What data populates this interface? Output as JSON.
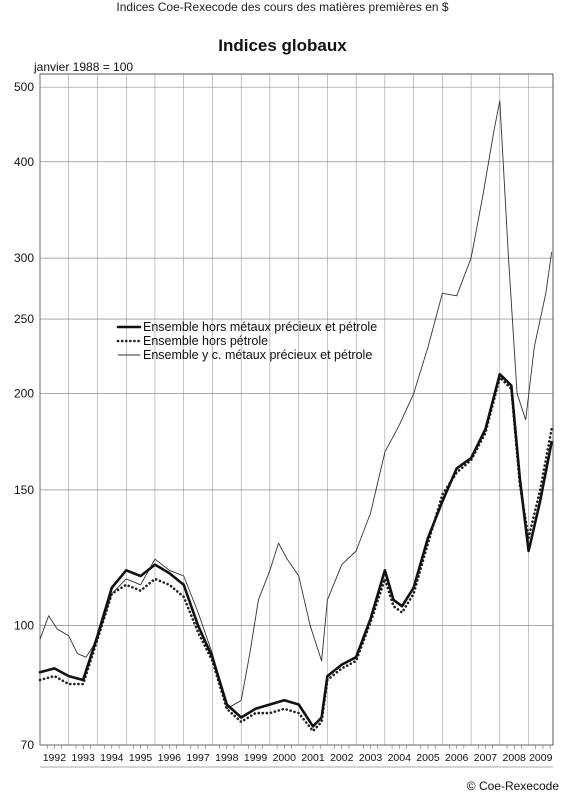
{
  "header": {
    "top_title": "Indices Coe-Rexecode des cours des matières premières en $",
    "chart_title": "Indices globaux",
    "base_note": "janvier 1988 = 100",
    "copyright": "© Coe-Rexecode"
  },
  "chart_data": {
    "type": "line",
    "title": "Indices globaux",
    "subtitle": "janvier 1988 = 100",
    "yscale": "log",
    "ylim": [
      70,
      520
    ],
    "yticks": [
      70,
      100,
      150,
      200,
      250,
      300,
      400,
      500
    ],
    "xlim": [
      1992.0,
      2009.85
    ],
    "xticks": [
      "1992",
      "1993",
      "1994",
      "1995",
      "1996",
      "1997",
      "1998",
      "1999",
      "2000",
      "2001",
      "2002",
      "2003",
      "2004",
      "2005",
      "2006",
      "2007",
      "2008",
      "2009"
    ],
    "grid": true,
    "legend_position": "center-left",
    "series": [
      {
        "name": "Ensemble hors métaux précieux et pétrole",
        "style": "thick",
        "color": "#111111",
        "x": [
          1992.0,
          1992.5,
          1993.0,
          1993.5,
          1994.0,
          1994.5,
          1995.0,
          1995.5,
          1996.0,
          1996.5,
          1997.0,
          1997.5,
          1998.0,
          1998.5,
          1999.0,
          1999.5,
          2000.0,
          2000.5,
          2001.0,
          2001.5,
          2001.8,
          2002.0,
          2002.5,
          2003.0,
          2003.5,
          2004.0,
          2004.3,
          2004.6,
          2005.0,
          2005.5,
          2006.0,
          2006.5,
          2007.0,
          2007.5,
          2008.0,
          2008.4,
          2008.7,
          2009.0,
          2009.4,
          2009.8
        ],
        "y": [
          87,
          88,
          86,
          85,
          97,
          112,
          118,
          116,
          120,
          117,
          113,
          100,
          91,
          79,
          76,
          78,
          79,
          80,
          79,
          74,
          76,
          86,
          89,
          91,
          102,
          118,
          108,
          106,
          112,
          130,
          145,
          160,
          165,
          180,
          212,
          205,
          155,
          125,
          145,
          173
        ]
      },
      {
        "name": "Ensemble hors pétrole",
        "style": "dotted",
        "color": "#222222",
        "x": [
          1992.0,
          1992.5,
          1993.0,
          1993.5,
          1994.0,
          1994.5,
          1995.0,
          1995.5,
          1996.0,
          1996.5,
          1997.0,
          1997.5,
          1998.0,
          1998.5,
          1999.0,
          1999.5,
          2000.0,
          2000.5,
          2001.0,
          2001.5,
          2001.8,
          2002.0,
          2002.5,
          2003.0,
          2003.5,
          2004.0,
          2004.3,
          2004.6,
          2005.0,
          2005.5,
          2006.0,
          2006.5,
          2007.0,
          2007.5,
          2008.0,
          2008.4,
          2008.7,
          2009.0,
          2009.4,
          2009.8
        ],
        "y": [
          85,
          86,
          84,
          84,
          96,
          110,
          113,
          111,
          115,
          113,
          109,
          98,
          90,
          78,
          75,
          77,
          77,
          78,
          77,
          73,
          75,
          85,
          88,
          90,
          101,
          115,
          106,
          104,
          110,
          128,
          148,
          158,
          164,
          178,
          210,
          203,
          152,
          130,
          150,
          180
        ]
      },
      {
        "name": "Ensemble y c. métaux précieux et pétrole",
        "style": "thin",
        "color": "#333333",
        "x": [
          1992.0,
          1992.3,
          1992.6,
          1993.0,
          1993.3,
          1993.6,
          1994.0,
          1994.5,
          1995.0,
          1995.5,
          1996.0,
          1996.5,
          1997.0,
          1997.5,
          1998.0,
          1998.5,
          1999.0,
          1999.3,
          1999.6,
          2000.0,
          2000.3,
          2000.6,
          2001.0,
          2001.4,
          2001.8,
          2002.0,
          2002.5,
          2003.0,
          2003.5,
          2004.0,
          2004.5,
          2005.0,
          2005.5,
          2006.0,
          2006.5,
          2007.0,
          2007.4,
          2007.8,
          2008.0,
          2008.3,
          2008.6,
          2008.9,
          2009.2,
          2009.6,
          2009.8
        ],
        "y": [
          96,
          103,
          99,
          97,
          92,
          91,
          96,
          110,
          115,
          113,
          122,
          118,
          116,
          104,
          92,
          78,
          80,
          92,
          108,
          118,
          128,
          122,
          116,
          100,
          90,
          108,
          120,
          125,
          140,
          168,
          182,
          200,
          230,
          270,
          268,
          300,
          360,
          440,
          480,
          300,
          200,
          185,
          230,
          270,
          305
        ]
      }
    ]
  }
}
